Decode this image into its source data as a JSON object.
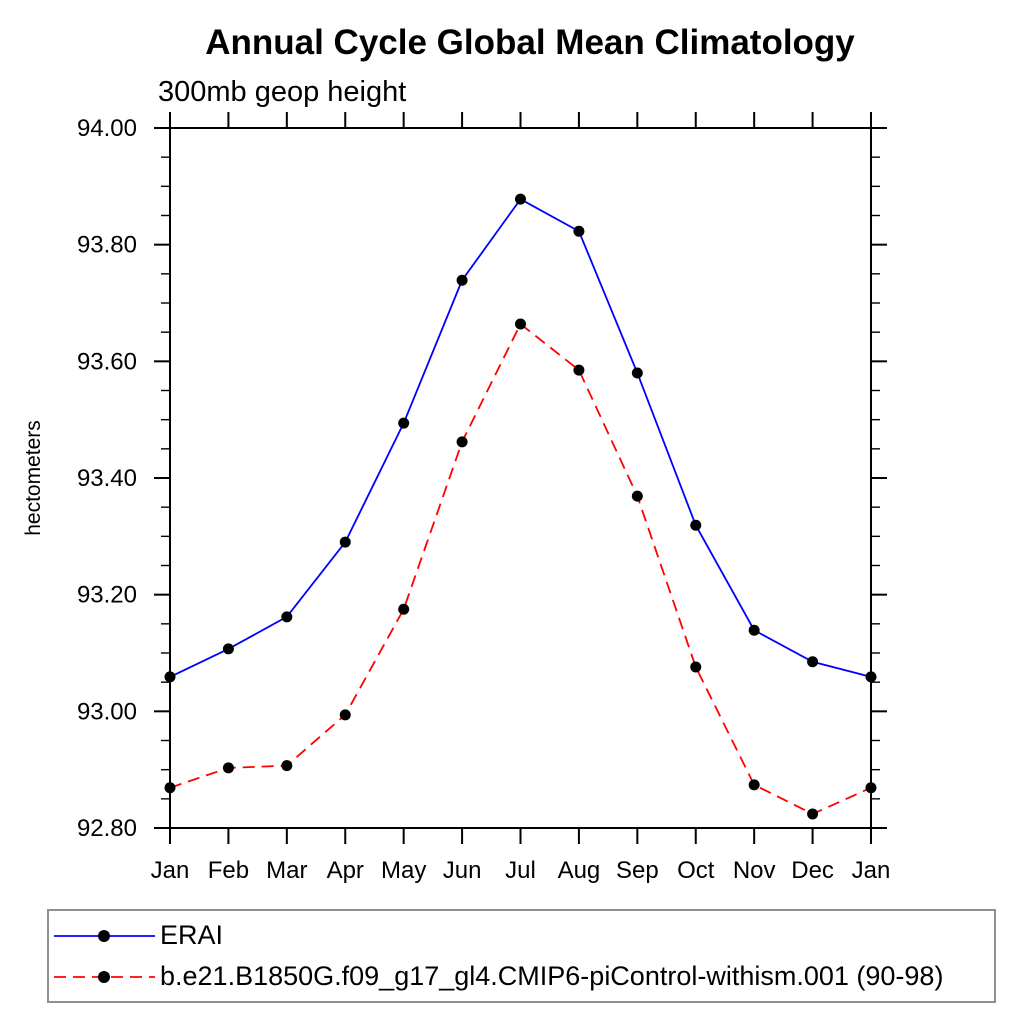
{
  "chart_data": {
    "type": "line",
    "title": "Annual Cycle Global Mean Climatology",
    "subtitle": "300mb geop height",
    "ylabel": "hectometers",
    "xlabel": "",
    "categories": [
      "Jan",
      "Feb",
      "Mar",
      "Apr",
      "May",
      "Jun",
      "Jul",
      "Aug",
      "Sep",
      "Oct",
      "Nov",
      "Dec",
      "Jan"
    ],
    "ylim": [
      92.8,
      94.0
    ],
    "ytick_major": 0.2,
    "ytick_minor": 0.05,
    "ytick_label_format": "2dp",
    "grid": false,
    "frame_color": "#000000",
    "background_color": "#ffffff",
    "legend_position": "bottom-left-box",
    "series": [
      {
        "name": "ERAI",
        "color": "#0000ff",
        "line_style": "solid",
        "marker": "circle",
        "marker_color": "#000000",
        "values": [
          93.059,
          93.107,
          93.162,
          93.29,
          93.494,
          93.739,
          93.878,
          93.823,
          93.58,
          93.319,
          93.139,
          93.085,
          93.059
        ]
      },
      {
        "name": "b.e21.B1850G.f09_g17_gl4.CMIP6-piControl-withism.001 (90-98)",
        "color": "#ff0000",
        "line_style": "dashed",
        "marker": "circle",
        "marker_color": "#000000",
        "values": [
          92.869,
          92.903,
          92.907,
          92.994,
          93.175,
          93.462,
          93.664,
          93.585,
          93.369,
          93.076,
          92.874,
          92.824,
          92.869
        ]
      }
    ]
  }
}
